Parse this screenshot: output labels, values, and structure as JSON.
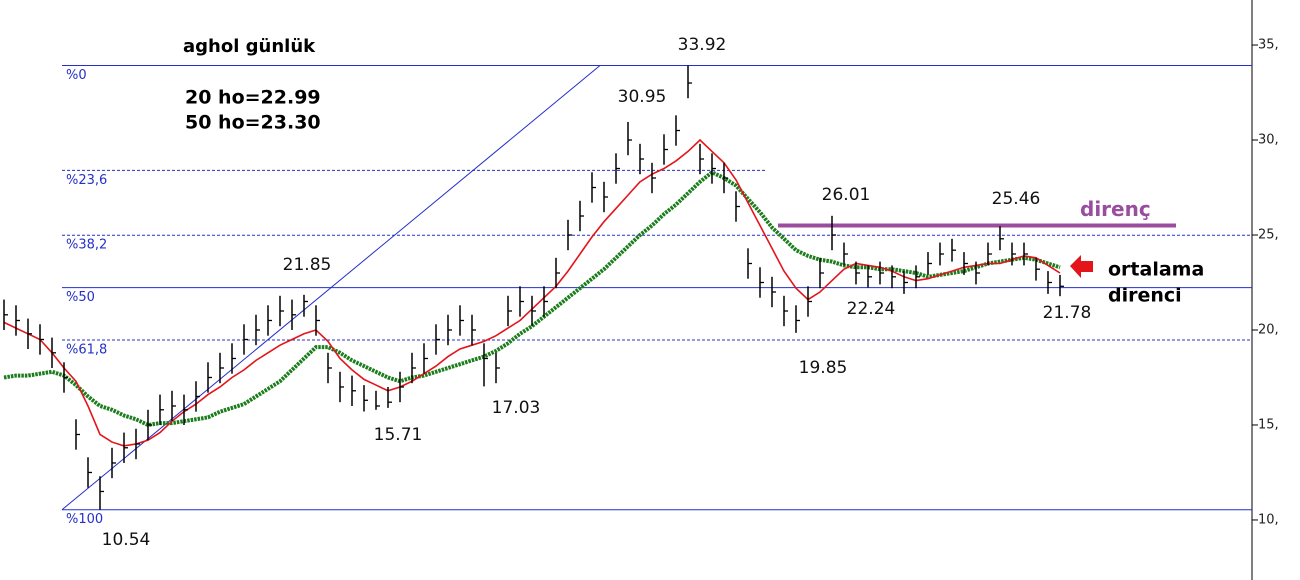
{
  "chart_data": {
    "type": "ohlc",
    "title": "aghol günlük",
    "ylim": [
      6.84,
      37.37
    ],
    "yticks": [
      {
        "value": 35,
        "label": "35,"
      },
      {
        "value": 30,
        "label": "30,"
      },
      {
        "value": 25,
        "label": "25,"
      },
      {
        "value": 20,
        "label": "20,"
      },
      {
        "value": 15,
        "label": "15,"
      },
      {
        "value": 10,
        "label": "10,"
      }
    ],
    "bar_color": "#000000",
    "close": [
      20.8,
      20.5,
      19.8,
      19.5,
      18.8,
      17.5,
      14.5,
      12.5,
      11.5,
      13,
      13.8,
      14,
      15,
      15.8,
      16,
      15.8,
      16.5,
      17.5,
      18,
      18.5,
      19.5,
      20,
      20.5,
      21,
      20.8,
      21.5,
      20.5,
      18,
      17,
      16.8,
      16.3,
      16,
      16.2,
      17,
      18,
      18.5,
      19.5,
      20,
      20.5,
      20,
      18.5,
      18,
      21,
      21.5,
      21,
      21.5,
      23,
      25,
      26,
      27.5,
      27,
      28.5,
      30,
      29,
      28,
      29.5,
      30.5,
      33,
      29,
      28.5,
      28,
      26.5,
      23.5,
      22.5,
      22,
      21,
      20.5,
      21.5,
      23,
      25,
      24,
      23,
      22.8,
      23,
      22.8,
      22.5,
      22.8,
      23.5,
      24,
      24.2,
      23.5,
      23,
      24,
      24.8,
      24,
      24,
      23.2,
      22.5,
      22.3
    ],
    "high": [
      21.6,
      21.3,
      20.6,
      20.3,
      19.6,
      18.3,
      15.3,
      13.3,
      12.3,
      13.8,
      14.6,
      14.8,
      15.8,
      16.6,
      16.8,
      16.6,
      17.3,
      18.3,
      18.8,
      19.3,
      20.3,
      20.8,
      21.3,
      21.8,
      21.6,
      21.85,
      21.3,
      18.8,
      17.8,
      17.6,
      17.1,
      16.8,
      17,
      17.8,
      18.8,
      19.3,
      20.3,
      20.8,
      21.3,
      20.8,
      19.3,
      18.8,
      21.8,
      22.3,
      21.8,
      22.3,
      23.8,
      25.8,
      26.8,
      28.3,
      27.8,
      29.3,
      30.95,
      29.8,
      28.8,
      30.3,
      31.3,
      33.92,
      29.8,
      29.3,
      28.8,
      27.3,
      24.3,
      23.3,
      22.8,
      21.8,
      21.3,
      22.3,
      23.8,
      26.01,
      24.6,
      23.6,
      23.4,
      23.6,
      23.4,
      23.1,
      23.4,
      24.1,
      24.6,
      24.8,
      24.1,
      23.6,
      24.6,
      25.46,
      24.6,
      24.6,
      23.8,
      23.1,
      22.9
    ],
    "low": [
      20,
      19.7,
      19,
      18.7,
      18,
      16.7,
      13.7,
      11.7,
      10.54,
      12.2,
      13,
      13.2,
      14.2,
      15,
      15.2,
      15,
      15.7,
      16.7,
      17.2,
      17.7,
      18.7,
      19.2,
      19.7,
      20.2,
      20,
      20.7,
      19.7,
      17.2,
      16.2,
      16,
      15.71,
      15.8,
      15.9,
      16.2,
      17.2,
      17.7,
      18.7,
      19.2,
      19.7,
      19.2,
      17.03,
      17.2,
      20.2,
      20.7,
      20.2,
      20.7,
      22.2,
      24.2,
      25.2,
      26.7,
      26.2,
      27.7,
      29.2,
      28.2,
      27.2,
      28.7,
      29.7,
      32.2,
      28.2,
      27.7,
      27.2,
      25.7,
      22.7,
      21.7,
      21.2,
      20.2,
      19.85,
      20.7,
      22.2,
      24.2,
      23.4,
      22.4,
      22.24,
      22.4,
      22.2,
      21.9,
      22.2,
      22.9,
      23.4,
      23.6,
      22.9,
      22.4,
      23.4,
      24.2,
      23.4,
      23.4,
      22.6,
      21.9,
      21.78
    ],
    "ma20": {
      "label": "20 ho=22.99",
      "color": "#e3151b",
      "values": [
        20.4,
        20.1,
        19.8,
        19.5,
        18.8,
        18.0,
        17.3,
        16.0,
        14.5,
        14.1,
        13.9,
        14.0,
        14.2,
        14.6,
        15.2,
        15.7,
        16.1,
        16.6,
        17.0,
        17.5,
        17.9,
        18.4,
        18.8,
        19.2,
        19.5,
        19.8,
        20.0,
        19.4,
        18.5,
        17.9,
        17.4,
        17.1,
        16.8,
        17.0,
        17.3,
        17.7,
        18.1,
        18.6,
        19.0,
        19.2,
        19.4,
        19.7,
        20.1,
        20.5,
        21.1,
        21.7,
        22.3,
        23.1,
        24.0,
        24.9,
        25.7,
        26.4,
        27.1,
        27.8,
        28.2,
        28.5,
        28.9,
        29.4,
        30.0,
        29.4,
        28.8,
        27.9,
        26.7,
        25.5,
        24.3,
        23.1,
        22.2,
        21.6,
        22.0,
        22.6,
        23.2,
        23.5,
        23.4,
        23.3,
        23.1,
        22.8,
        22.6,
        22.7,
        22.9,
        23.1,
        23.3,
        23.4,
        23.5,
        23.5,
        23.7,
        23.9,
        23.8,
        23.4,
        23.0
      ]
    },
    "ma50": {
      "label": "50 ho=23.30",
      "color": "#1b7d1b",
      "values": [
        17.5,
        17.6,
        17.6,
        17.7,
        17.8,
        17.6,
        17.1,
        16.5,
        16.0,
        15.8,
        15.5,
        15.3,
        15.0,
        15.1,
        15.1,
        15.2,
        15.3,
        15.4,
        15.7,
        15.9,
        16.1,
        16.5,
        16.9,
        17.3,
        17.9,
        18.5,
        19.1,
        19.1,
        18.8,
        18.4,
        18.1,
        17.8,
        17.5,
        17.3,
        17.5,
        17.6,
        17.8,
        18.0,
        18.2,
        18.4,
        18.6,
        18.9,
        19.3,
        19.8,
        20.2,
        20.7,
        21.2,
        21.7,
        22.2,
        22.7,
        23.2,
        23.8,
        24.4,
        25.0,
        25.5,
        26.1,
        26.6,
        27.2,
        27.8,
        28.3,
        28.0,
        27.6,
        26.9,
        26.2,
        25.4,
        24.8,
        24.2,
        23.9,
        23.7,
        23.6,
        23.4,
        23.3,
        23.3,
        23.2,
        23.2,
        23.1,
        23.0,
        22.8,
        22.9,
        23.0,
        23.1,
        23.3,
        23.5,
        23.6,
        23.7,
        23.8,
        23.7,
        23.5,
        23.3
      ]
    },
    "fib_color": "#2530c8",
    "fib_levels": [
      {
        "label": "%0",
        "value": 33.92,
        "line": "solid"
      },
      {
        "label": "%23,6",
        "value": 28.4,
        "line": "dashed"
      },
      {
        "label": "%38,2",
        "value": 24.99,
        "line": "dashed"
      },
      {
        "label": "%50",
        "value": 22.23,
        "line": "solid"
      },
      {
        "label": "%61,8",
        "value": 19.47,
        "line": "dashed"
      },
      {
        "label": "%100",
        "value": 10.54,
        "line": "solid"
      }
    ],
    "resistance": {
      "label": "direnç",
      "value": 25.5,
      "color": "#9a4c9e"
    },
    "annotation": {
      "lines": [
        "ortalama",
        "direnci"
      ],
      "color": "#e3151b"
    }
  }
}
